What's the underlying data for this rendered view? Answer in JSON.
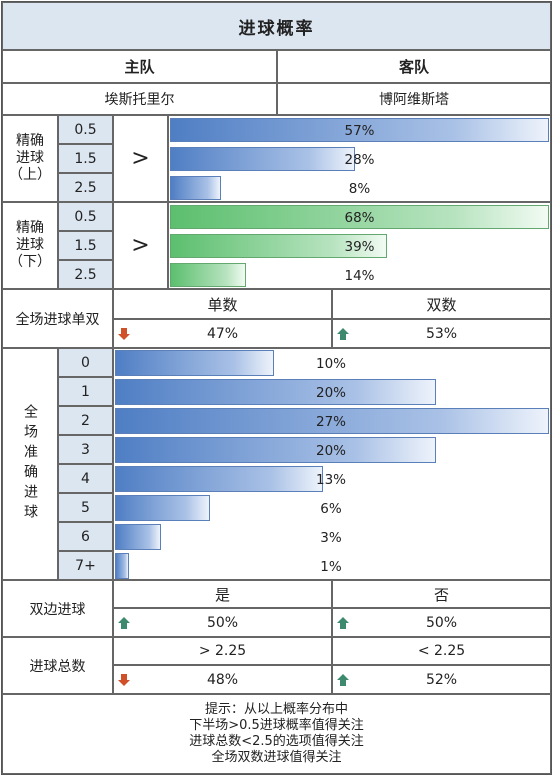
{
  "title": "进球概率",
  "teams": {
    "home_label": "主队",
    "away_label": "客队",
    "home": "埃斯托里尔",
    "away": "博阿维斯塔"
  },
  "first_half": {
    "label_lines": [
      "精确",
      "进球",
      "（上）"
    ],
    "compare": ">",
    "rows": [
      {
        "line": "0.5",
        "pct": "57%",
        "value": 57
      },
      {
        "line": "1.5",
        "pct": "28%",
        "value": 28
      },
      {
        "line": "2.5",
        "pct": "8%",
        "value": 8
      }
    ]
  },
  "second_half": {
    "label_lines": [
      "精确",
      "进球",
      "（下）"
    ],
    "compare": ">",
    "rows": [
      {
        "line": "0.5",
        "pct": "68%",
        "value": 68
      },
      {
        "line": "1.5",
        "pct": "39%",
        "value": 39
      },
      {
        "line": "2.5",
        "pct": "14%",
        "value": 14
      }
    ]
  },
  "odd_even": {
    "label": "全场进球单双",
    "odd_label": "单数",
    "even_label": "双数",
    "odd_pct": "47%",
    "even_pct": "53%",
    "odd_arrow": "down-arrow-icon",
    "even_arrow": "up-arrow-icon"
  },
  "total_goals": {
    "label": "全场准确进球",
    "rows": [
      {
        "goals": "0",
        "pct": "10%",
        "value": 10
      },
      {
        "goals": "1",
        "pct": "20%",
        "value": 20
      },
      {
        "goals": "2",
        "pct": "27%",
        "value": 27
      },
      {
        "goals": "3",
        "pct": "20%",
        "value": 20
      },
      {
        "goals": "4",
        "pct": "13%",
        "value": 13
      },
      {
        "goals": "5",
        "pct": "6%",
        "value": 6
      },
      {
        "goals": "6",
        "pct": "3%",
        "value": 3
      },
      {
        "goals": "7+",
        "pct": "1%",
        "value": 1
      }
    ]
  },
  "btts": {
    "label": "双边进球",
    "yes_label": "是",
    "no_label": "否",
    "yes_pct": "50%",
    "no_pct": "50%",
    "yes_arrow": "up-arrow-icon",
    "no_arrow": "up-arrow-icon"
  },
  "over_under": {
    "label": "进球总数",
    "over_label": "> 2.25",
    "under_label": "< 2.25",
    "over_pct": "48%",
    "under_pct": "52%",
    "over_arrow": "down-arrow-icon",
    "under_arrow": "up-arrow-icon"
  },
  "tips": [
    "提示：从以上概率分布中",
    "下半场>0.5进球概率值得关注",
    "进球总数<2.5的选项值得关注",
    "全场双数进球值得关注"
  ],
  "colors": {
    "header_bg": "#dce6f1",
    "blue_bar": "#4f7ec4",
    "green_bar": "#5cbf6e",
    "up_arrow": "#3d8a6e",
    "down_arrow": "#d0502a"
  }
}
